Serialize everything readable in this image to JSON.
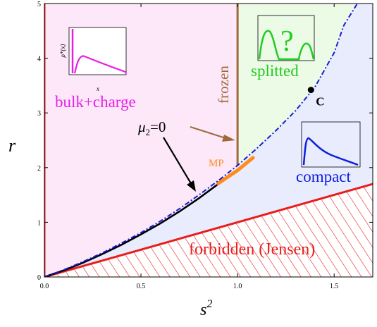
{
  "chart_data": {
    "type": "line",
    "xlabel": "s",
    "xlabel_sup": "2",
    "ylabel": "r",
    "xlim": [
      0,
      1.7
    ],
    "ylim": [
      0,
      5
    ],
    "xticks": [
      {
        "v": 0.0,
        "label": "0.0"
      },
      {
        "v": 0.5,
        "label": "0.5"
      },
      {
        "v": 1.0,
        "label": "1.0"
      },
      {
        "v": 1.5,
        "label": "1.5"
      }
    ],
    "yticks": [
      {
        "v": 0,
        "label": "0"
      },
      {
        "v": 1,
        "label": "1"
      },
      {
        "v": 2,
        "label": "2"
      },
      {
        "v": 3,
        "label": "3"
      },
      {
        "v": 4,
        "label": "4"
      },
      {
        "v": 5,
        "label": "5"
      }
    ],
    "colors": {
      "bulk_region": "#fce8f8",
      "splitted_region": "#ebfbe6",
      "compact_region": "#e9ecfc",
      "bulk_text": "#e81ee8",
      "splitted_text": "#22cc22",
      "compact_text": "#0c1fe0",
      "frozen": "#a0693c",
      "forbidden": "#e81e1e",
      "mp": "#ff8c1a",
      "critical_line": "#000000",
      "boundary": "#1a1ad6"
    },
    "lines": {
      "compact_boundary": {
        "style": "dash-dot",
        "points": [
          [
            0,
            0
          ],
          [
            0.1,
            0.13
          ],
          [
            0.2,
            0.28
          ],
          [
            0.3,
            0.44
          ],
          [
            0.4,
            0.62
          ],
          [
            0.5,
            0.81
          ],
          [
            0.6,
            1.02
          ],
          [
            0.7,
            1.25
          ],
          [
            0.8,
            1.5
          ],
          [
            0.9,
            1.76
          ],
          [
            1.0,
            2.04
          ],
          [
            1.1,
            2.35
          ],
          [
            1.2,
            2.68
          ],
          [
            1.3,
            3.04
          ],
          [
            1.4,
            3.47
          ],
          [
            1.5,
            4.1
          ],
          [
            1.55,
            4.6
          ],
          [
            1.62,
            5.0
          ]
        ]
      },
      "mu2_zero": {
        "points": [
          [
            0,
            0
          ],
          [
            0.1,
            0.12
          ],
          [
            0.2,
            0.26
          ],
          [
            0.3,
            0.42
          ],
          [
            0.4,
            0.59
          ],
          [
            0.5,
            0.78
          ],
          [
            0.6,
            0.98
          ],
          [
            0.7,
            1.2
          ],
          [
            0.8,
            1.44
          ],
          [
            0.9,
            1.7
          ],
          [
            0.93,
            1.78
          ]
        ]
      },
      "mp_segment": {
        "points": [
          [
            0.9,
            1.71
          ],
          [
            1.0,
            1.95
          ],
          [
            1.08,
            2.18
          ]
        ]
      },
      "frozen_line": {
        "x": 1.0,
        "y_from": 2.04,
        "y_to": 5
      }
    },
    "forbidden_line": {
      "slope": 1.0,
      "x_range": [
        0,
        1.7
      ]
    },
    "regions": {
      "bulk": "bulk+charge",
      "splitted": "splitted",
      "compact": "compact",
      "frozen": "frozen",
      "forbidden": "forbidden (Jensen)"
    },
    "annotations": {
      "mu2_prefix": "μ",
      "mu2_sub": "2",
      "mu2_suffix": "=0",
      "mp": "MP",
      "critical_point_label": "C",
      "critical_point": [
        1.38,
        3.42
      ],
      "question": "?"
    },
    "insets": {
      "bulk": {
        "ylabel": "ρ*(x)",
        "xlabel": "x"
      }
    }
  }
}
